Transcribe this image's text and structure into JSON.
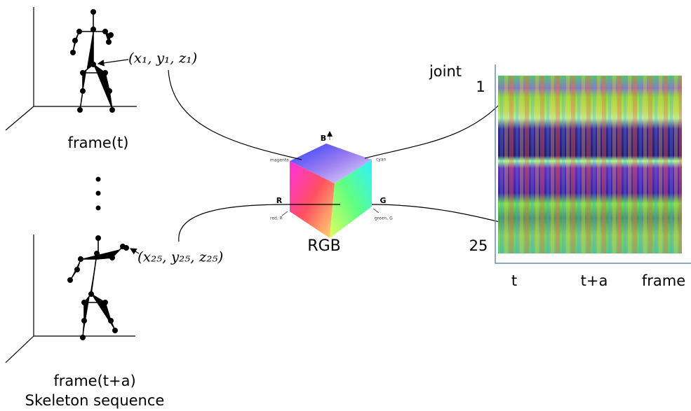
{
  "skeleton_frames": [
    {
      "label": "frame(t)",
      "joint_label": "(x₁, y₁, z₁)"
    },
    {
      "label": "frame(t+a)",
      "joint_label": "(x₂₅, y₂₅, z₂₅)"
    }
  ],
  "sequence_label": "Skeleton sequence",
  "rgb_cube": {
    "label": "RGB",
    "axes": [
      "B",
      "R",
      "G"
    ],
    "corners": [
      "magenta",
      "cyan",
      "red, R",
      "green, G"
    ]
  },
  "image": {
    "y_axis_title": "joint",
    "y_labels": [
      "1",
      "25"
    ],
    "x_labels": [
      "t",
      "t+a",
      "frame"
    ]
  }
}
